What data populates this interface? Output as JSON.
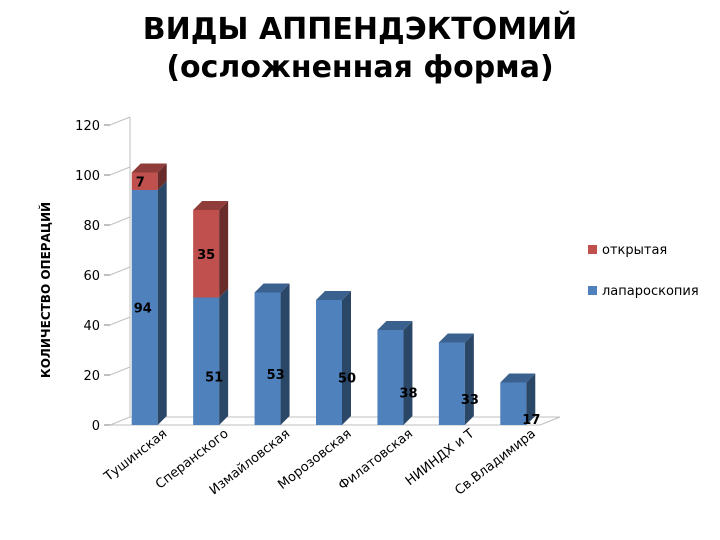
{
  "chart_data": {
    "type": "bar",
    "stacked": true,
    "title": "ВИДЫ АППЕНДЭКТОМИЙ",
    "subtitle": "(осложненная форма)",
    "ylabel": "КОЛИЧЕСТВО ОПЕРАЦИЙ",
    "xlabel": "",
    "ylim": [
      0,
      120
    ],
    "yticks": [
      "0",
      "20",
      "40",
      "60",
      "80",
      "100",
      "120"
    ],
    "grid": false,
    "legend_position": "right",
    "categories": [
      "Тушинская",
      "Сперанского",
      "Измайловская",
      "Морозовская",
      "Филатовская",
      "НИИНДХ и Т",
      "Св.Владимира"
    ],
    "series": [
      {
        "name": "лапароскопия",
        "color": "#4f81bd",
        "values": [
          94,
          51,
          53,
          50,
          38,
          33,
          17
        ]
      },
      {
        "name": "открытая",
        "color": "#c0504d",
        "values": [
          7,
          35,
          0,
          0,
          0,
          0,
          0
        ]
      }
    ],
    "data_labels": {
      "лапароскопия": [
        "94",
        "51",
        "53",
        "50",
        "38",
        "33",
        "17"
      ],
      "открытая": [
        "7",
        "35",
        "",
        "",
        "",
        "",
        ""
      ]
    }
  }
}
